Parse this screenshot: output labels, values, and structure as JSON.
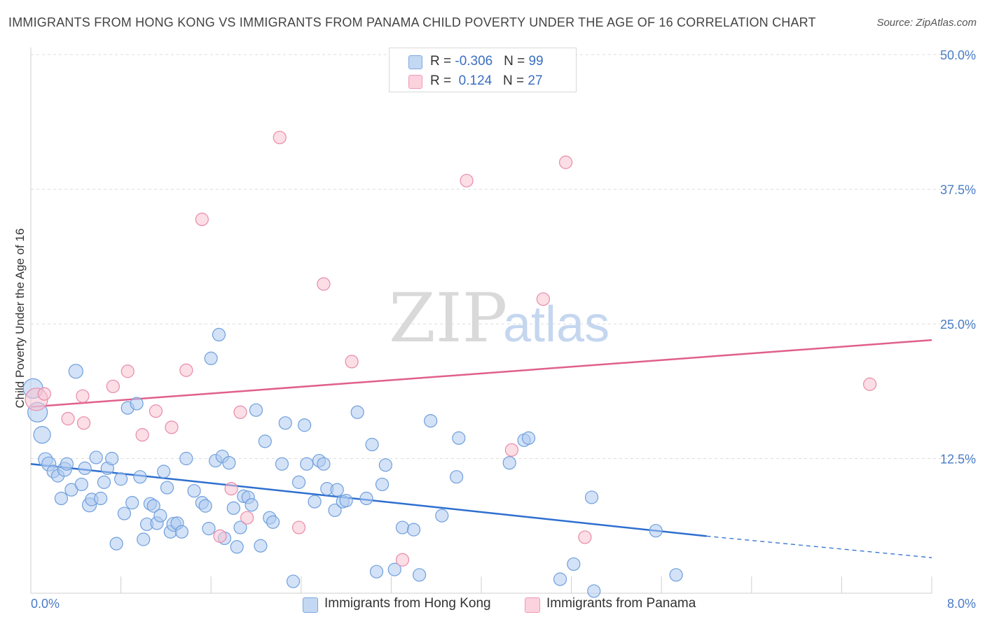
{
  "title": "IMMIGRANTS FROM HONG KONG VS IMMIGRANTS FROM PANAMA CHILD POVERTY UNDER THE AGE OF 16 CORRELATION CHART",
  "source": "Source: ZipAtlas.com",
  "watermark": {
    "zip": "ZIP",
    "atlas": "atlas"
  },
  "legend": {
    "rows": [
      {
        "r_label": "R = ",
        "r_value": "-0.306",
        "n_label": "N = ",
        "n_value": "99"
      },
      {
        "r_label": "R = ",
        "r_value": " 0.124",
        "n_label": "N = ",
        "n_value": "27"
      }
    ]
  },
  "bottom_legend": [
    "Immigrants from Hong Kong",
    "Immigrants from Panama"
  ],
  "colors": {
    "hong_kong_fill": "#aecbf0",
    "hong_kong_stroke": "#6f9fdc",
    "hong_kong_line": "#2e6fd0",
    "panama_fill": "#f7c3d2",
    "panama_stroke": "#e98aa8",
    "panama_line": "#e0608a",
    "tick_text": "#4a7cc7",
    "grid": "#dddddd"
  },
  "chart_data": {
    "type": "scatter",
    "title": "IMMIGRANTS FROM HONG KONG VS IMMIGRANTS FROM PANAMA CHILD POVERTY UNDER THE AGE OF 16 CORRELATION CHART",
    "xlabel": "",
    "ylabel": "Child Poverty Under the Age of 16",
    "xlim": [
      0,
      8
    ],
    "ylim": [
      0,
      50
    ],
    "x_tick_labels": [
      "0.0%",
      "8.0%"
    ],
    "y_tick_labels": [
      "12.5%",
      "25.0%",
      "37.5%",
      "50.0%"
    ],
    "y_ticks": [
      12.5,
      25.0,
      37.5,
      50.0
    ],
    "grid": "horizontal dashed",
    "legend_position": "top-center",
    "series": [
      {
        "name": "Immigrants from Hong Kong",
        "r": -0.306,
        "n": 99,
        "trend": {
          "x0": 0.0,
          "y0": 12.0,
          "x1": 6.0,
          "y1": 5.3,
          "dashed_to_x": 8.0,
          "dashed_y": 3.3
        },
        "points": [
          [
            0.02,
            19.0,
            14
          ],
          [
            0.06,
            16.8,
            14
          ],
          [
            0.1,
            14.7,
            12
          ],
          [
            0.13,
            12.4,
            10
          ],
          [
            0.16,
            12.0,
            10
          ],
          [
            0.2,
            11.3,
            9
          ],
          [
            0.24,
            10.9,
            9
          ],
          [
            0.27,
            8.8,
            9
          ],
          [
            0.3,
            11.5,
            10
          ],
          [
            0.32,
            12.0,
            9
          ],
          [
            0.36,
            9.6,
            9
          ],
          [
            0.4,
            20.6,
            10
          ],
          [
            0.45,
            10.1,
            9
          ],
          [
            0.48,
            11.6,
            9
          ],
          [
            0.52,
            8.2,
            10
          ],
          [
            0.54,
            8.7,
            9
          ],
          [
            0.58,
            12.6,
            9
          ],
          [
            0.62,
            8.8,
            9
          ],
          [
            0.65,
            10.3,
            9
          ],
          [
            0.68,
            11.6,
            9
          ],
          [
            0.72,
            12.5,
            9
          ],
          [
            0.76,
            4.6,
            9
          ],
          [
            0.8,
            10.6,
            9
          ],
          [
            0.83,
            7.4,
            9
          ],
          [
            0.86,
            17.2,
            9
          ],
          [
            0.9,
            8.4,
            9
          ],
          [
            0.94,
            17.6,
            9
          ],
          [
            0.97,
            10.8,
            9
          ],
          [
            1.0,
            5.0,
            9
          ],
          [
            1.03,
            6.4,
            9
          ],
          [
            1.06,
            8.3,
            9
          ],
          [
            1.09,
            8.1,
            9
          ],
          [
            1.12,
            6.5,
            9
          ],
          [
            1.15,
            7.2,
            9
          ],
          [
            1.18,
            11.3,
            9
          ],
          [
            1.21,
            9.8,
            9
          ],
          [
            1.24,
            5.7,
            9
          ],
          [
            1.27,
            6.4,
            10
          ],
          [
            1.3,
            6.5,
            9
          ],
          [
            1.34,
            5.7,
            9
          ],
          [
            1.38,
            12.5,
            9
          ],
          [
            1.45,
            9.5,
            9
          ],
          [
            1.52,
            8.4,
            9
          ],
          [
            1.55,
            8.1,
            9
          ],
          [
            1.58,
            6.0,
            9
          ],
          [
            1.6,
            21.8,
            9
          ],
          [
            1.64,
            12.3,
            9
          ],
          [
            1.67,
            24.0,
            9
          ],
          [
            1.7,
            12.7,
            9
          ],
          [
            1.72,
            5.1,
            9
          ],
          [
            1.76,
            12.1,
            9
          ],
          [
            1.8,
            7.9,
            9
          ],
          [
            1.83,
            4.3,
            9
          ],
          [
            1.86,
            6.1,
            9
          ],
          [
            1.89,
            9.0,
            9
          ],
          [
            1.93,
            8.9,
            9
          ],
          [
            1.96,
            8.2,
            9
          ],
          [
            2.0,
            17.0,
            9
          ],
          [
            2.04,
            4.4,
            9
          ],
          [
            2.08,
            14.1,
            9
          ],
          [
            2.12,
            7.0,
            9
          ],
          [
            2.15,
            6.6,
            9
          ],
          [
            2.23,
            12.0,
            9
          ],
          [
            2.26,
            15.8,
            9
          ],
          [
            2.33,
            1.1,
            9
          ],
          [
            2.38,
            10.3,
            9
          ],
          [
            2.43,
            15.6,
            9
          ],
          [
            2.45,
            12.0,
            9
          ],
          [
            2.52,
            8.5,
            9
          ],
          [
            2.56,
            12.3,
            9
          ],
          [
            2.6,
            12.0,
            9
          ],
          [
            2.63,
            9.7,
            9
          ],
          [
            2.7,
            7.7,
            9
          ],
          [
            2.72,
            9.6,
            9
          ],
          [
            2.77,
            8.5,
            9
          ],
          [
            2.8,
            8.6,
            9
          ],
          [
            2.9,
            16.8,
            9
          ],
          [
            2.98,
            8.8,
            9
          ],
          [
            3.03,
            13.8,
            9
          ],
          [
            3.07,
            2.0,
            9
          ],
          [
            3.12,
            10.1,
            9
          ],
          [
            3.15,
            11.9,
            9
          ],
          [
            3.23,
            2.2,
            9
          ],
          [
            3.3,
            6.1,
            9
          ],
          [
            3.4,
            5.9,
            9
          ],
          [
            3.45,
            1.7,
            9
          ],
          [
            3.55,
            16.0,
            9
          ],
          [
            3.65,
            7.2,
            9
          ],
          [
            3.78,
            10.8,
            9
          ],
          [
            3.8,
            14.4,
            9
          ],
          [
            4.25,
            12.1,
            9
          ],
          [
            4.38,
            14.2,
            9
          ],
          [
            4.42,
            14.4,
            9
          ],
          [
            4.7,
            1.3,
            9
          ],
          [
            4.82,
            2.7,
            9
          ],
          [
            4.98,
            8.9,
            9
          ],
          [
            5.0,
            0.2,
            9
          ],
          [
            5.55,
            5.8,
            9
          ],
          [
            5.73,
            1.7,
            9
          ]
        ]
      },
      {
        "name": "Immigrants from Panama",
        "r": 0.124,
        "n": 27,
        "trend": {
          "x0": 0.0,
          "y0": 17.3,
          "x1": 8.0,
          "y1": 23.5
        },
        "points": [
          [
            0.05,
            18.0,
            16
          ],
          [
            0.12,
            18.5,
            9
          ],
          [
            0.33,
            16.2,
            9
          ],
          [
            0.46,
            18.3,
            9
          ],
          [
            0.47,
            15.8,
            9
          ],
          [
            0.73,
            19.2,
            9
          ],
          [
            0.86,
            20.6,
            9
          ],
          [
            0.99,
            14.7,
            9
          ],
          [
            1.11,
            16.9,
            9
          ],
          [
            1.25,
            15.4,
            9
          ],
          [
            1.38,
            20.7,
            9
          ],
          [
            1.52,
            34.7,
            9
          ],
          [
            1.68,
            5.3,
            9
          ],
          [
            1.78,
            9.7,
            9
          ],
          [
            1.86,
            16.8,
            9
          ],
          [
            1.92,
            7.0,
            9
          ],
          [
            2.21,
            42.3,
            9
          ],
          [
            2.38,
            6.1,
            9
          ],
          [
            2.6,
            28.7,
            9
          ],
          [
            2.85,
            21.5,
            9
          ],
          [
            3.3,
            3.1,
            9
          ],
          [
            3.87,
            38.3,
            9
          ],
          [
            4.27,
            13.3,
            9
          ],
          [
            4.55,
            27.3,
            9
          ],
          [
            4.75,
            40.0,
            9
          ],
          [
            4.92,
            5.2,
            9
          ],
          [
            7.45,
            19.4,
            9
          ]
        ]
      }
    ]
  }
}
